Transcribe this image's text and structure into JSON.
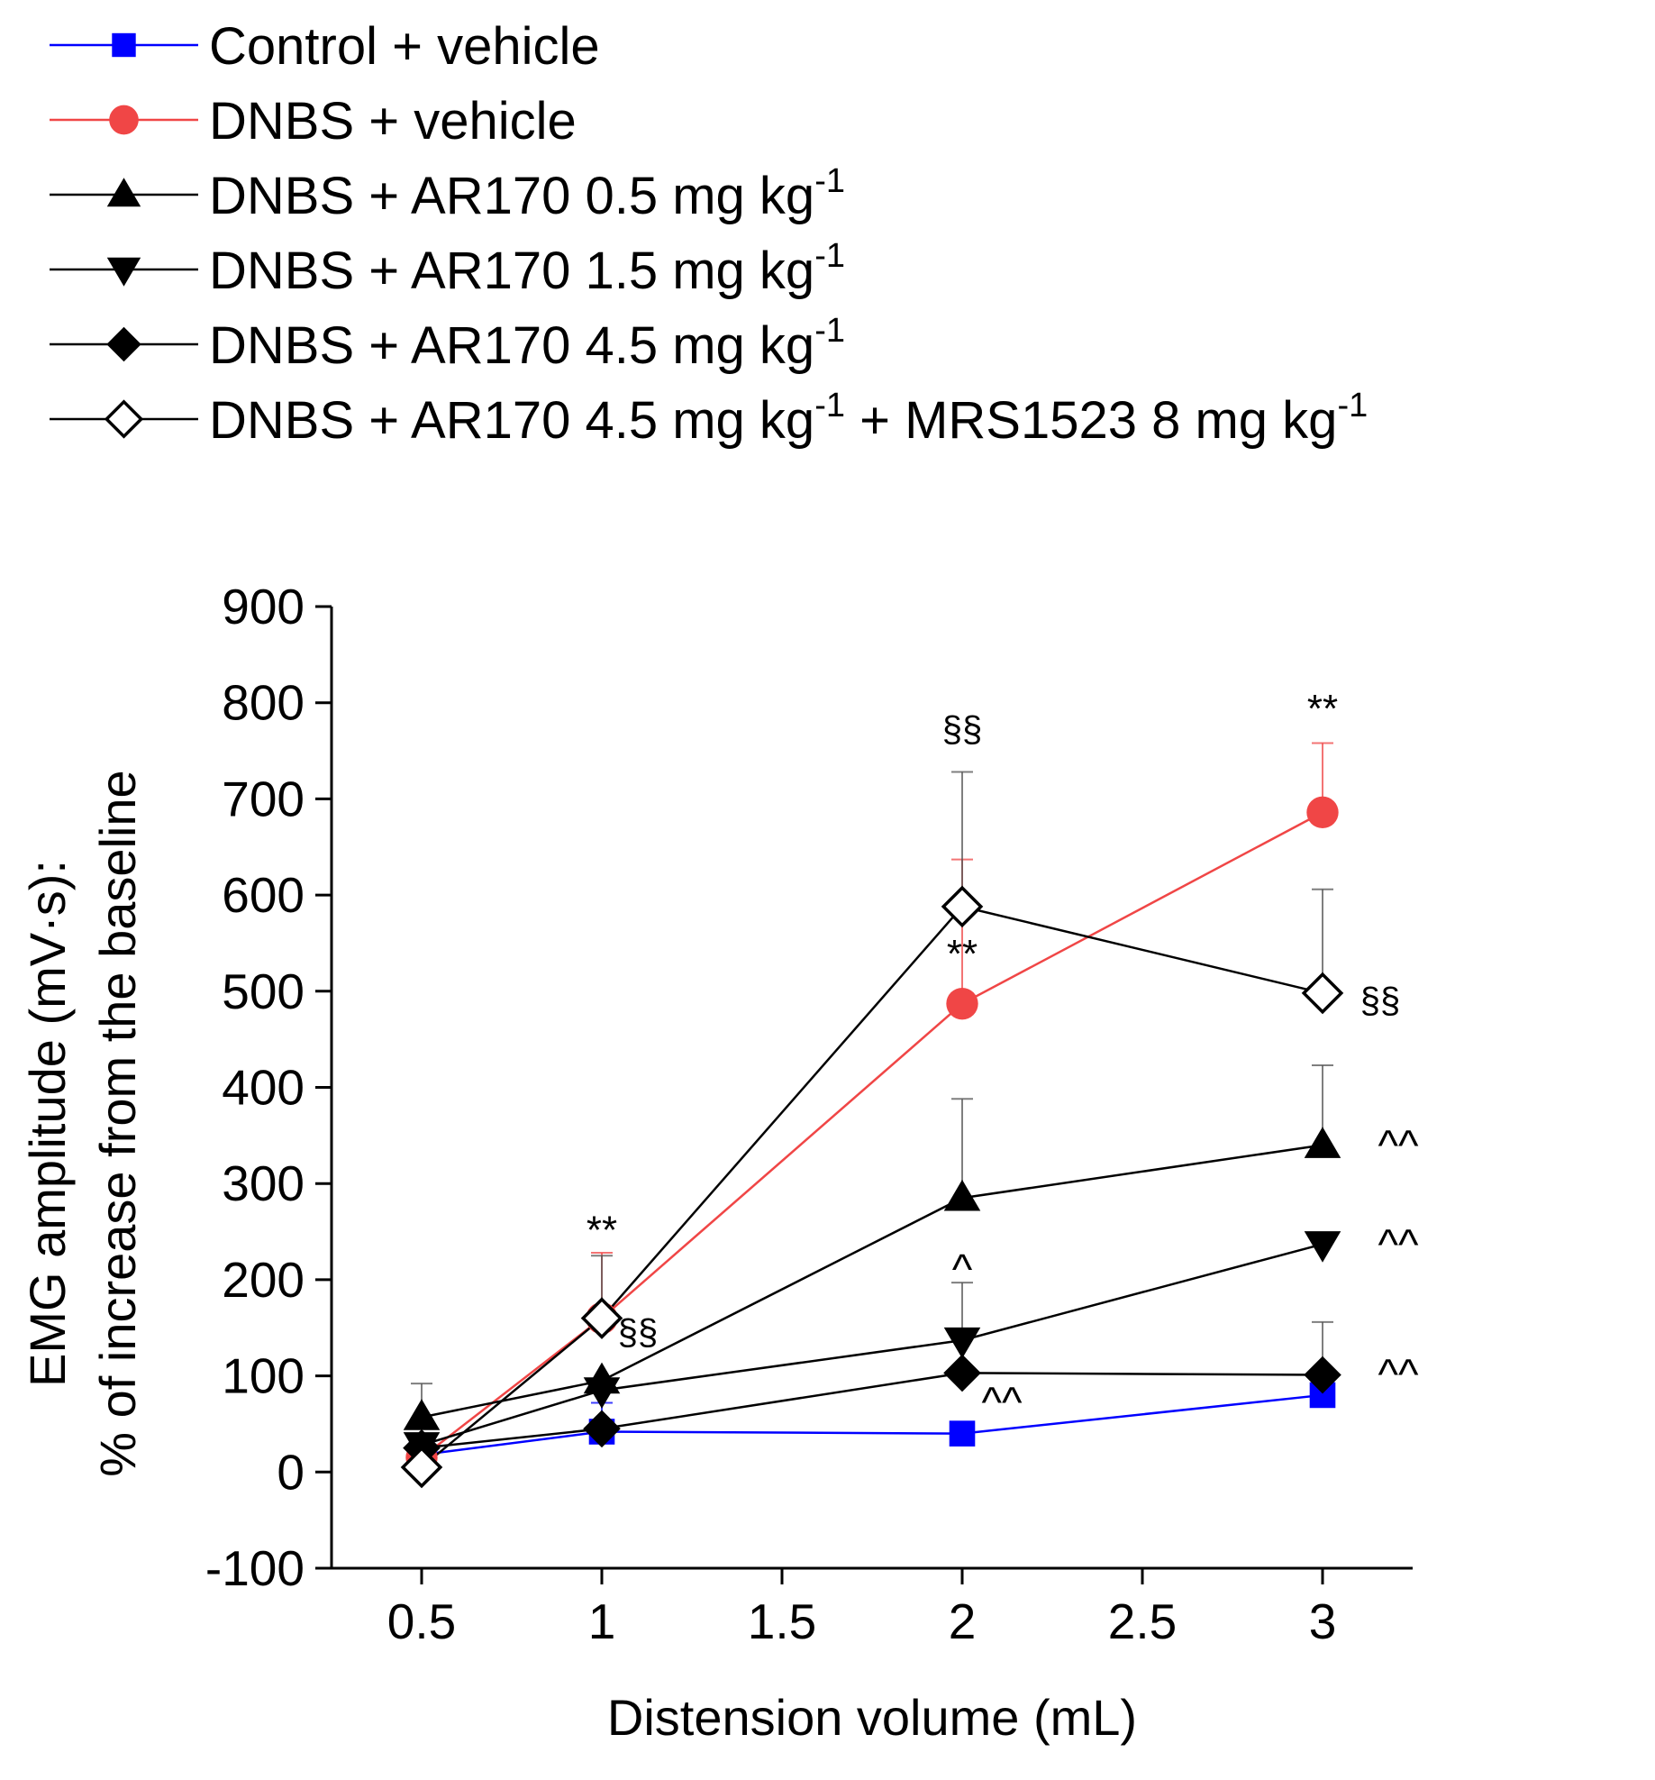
{
  "chart_data": {
    "type": "line",
    "title": "",
    "xlabel": "Distension volume (mL)",
    "ylabel": [
      "EMG amplitude (mV·s):",
      "% of increase from the baseline"
    ],
    "xlim": [
      0.25,
      3.25
    ],
    "ylim": [
      -100,
      900
    ],
    "xticks": [
      0.5,
      1,
      1.5,
      2,
      2.5,
      3
    ],
    "xtick_labels": [
      "0.5",
      "1",
      "1.5",
      "2",
      "2.5",
      "3"
    ],
    "yticks": [
      -100,
      0,
      100,
      200,
      300,
      400,
      500,
      600,
      700,
      800,
      900
    ],
    "ytick_labels": [
      "-100",
      "0",
      "100",
      "200",
      "300",
      "400",
      "500",
      "600",
      "700",
      "800",
      "900"
    ],
    "grid": false,
    "legend_position": "top",
    "x": [
      0.5,
      1,
      2,
      3
    ],
    "series": [
      {
        "name": "Control + vehicle",
        "name_sup": [],
        "color": "#0000ff",
        "marker": "square",
        "values": [
          18,
          42,
          40,
          80
        ],
        "errors": [
          0,
          30,
          0,
          0
        ]
      },
      {
        "name": "DNBS + vehicle",
        "name_sup": [],
        "color": "#f04646",
        "marker": "circle",
        "values": [
          15,
          160,
          487,
          686
        ],
        "errors": [
          0,
          68,
          150,
          72
        ]
      },
      {
        "name": "DNBS + AR170 0.5 mg kg",
        "name_sup": [
          "-1"
        ],
        "color": "#000000",
        "marker": "triangle-up",
        "values": [
          57,
          95,
          285,
          340
        ],
        "errors": [
          35,
          0,
          103,
          83
        ]
      },
      {
        "name": "DNBS + AR170 1.5 mg kg",
        "name_sup": [
          "-1"
        ],
        "color": "#000000",
        "marker": "triangle-down",
        "values": [
          28,
          85,
          137,
          237
        ],
        "errors": [
          0,
          0,
          60,
          0
        ]
      },
      {
        "name": "DNBS + AR170 4.5 mg kg",
        "name_sup": [
          "-1"
        ],
        "color": "#000000",
        "marker": "diamond",
        "values": [
          25,
          45,
          103,
          101
        ],
        "errors": [
          0,
          0,
          0,
          55
        ]
      },
      {
        "name": "DNBS + AR170 4.5 mg kg",
        "name_suffix": " + MRS1523 8 mg kg",
        "name_sup": [
          "-1",
          "-1"
        ],
        "color": "#000000",
        "marker": "diamond-open",
        "values": [
          5,
          160,
          588,
          498
        ],
        "errors": [
          0,
          65,
          140,
          108
        ]
      }
    ],
    "annotations": [
      {
        "text": "**",
        "x": 1,
        "y": 238,
        "size": 44
      },
      {
        "text": "**",
        "x": 2,
        "y": 525,
        "size": 44
      },
      {
        "text": "**",
        "x": 3,
        "y": 780,
        "size": 44
      },
      {
        "text": "§§",
        "x": 2,
        "y": 760,
        "size": 40
      },
      {
        "text": "§§",
        "x": 1.1,
        "y": 133,
        "size": 40
      },
      {
        "text": "§§",
        "x": 3.16,
        "y": 478,
        "size": 40
      },
      {
        "text": "^",
        "x": 2,
        "y": 195,
        "size": 48
      },
      {
        "text": "^^",
        "x": 2.11,
        "y": 57,
        "size": 48
      },
      {
        "text": "^^",
        "x": 3.21,
        "y": 324,
        "size": 48
      },
      {
        "text": "^^",
        "x": 3.21,
        "y": 221,
        "size": 48
      },
      {
        "text": "^^",
        "x": 3.21,
        "y": 86,
        "size": 48
      }
    ]
  }
}
